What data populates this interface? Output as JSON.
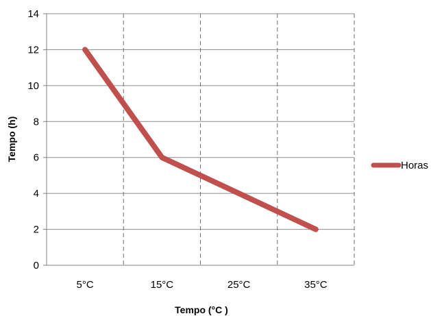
{
  "chart_data": {
    "type": "line",
    "categories": [
      "5°C",
      "15°C",
      "25°C",
      "35°C"
    ],
    "series": [
      {
        "name": "Horas",
        "values": [
          12,
          6,
          4,
          2
        ],
        "color": "#c0504d"
      }
    ],
    "xlabel": "Tempo (°C )",
    "ylabel": "Tempo (h)",
    "ylim": [
      0,
      14
    ],
    "yticks": [
      0,
      2,
      4,
      6,
      8,
      10,
      12,
      14
    ],
    "grid": {
      "horizontal": true,
      "vertical_dashed": true
    },
    "legend_position": "right"
  }
}
